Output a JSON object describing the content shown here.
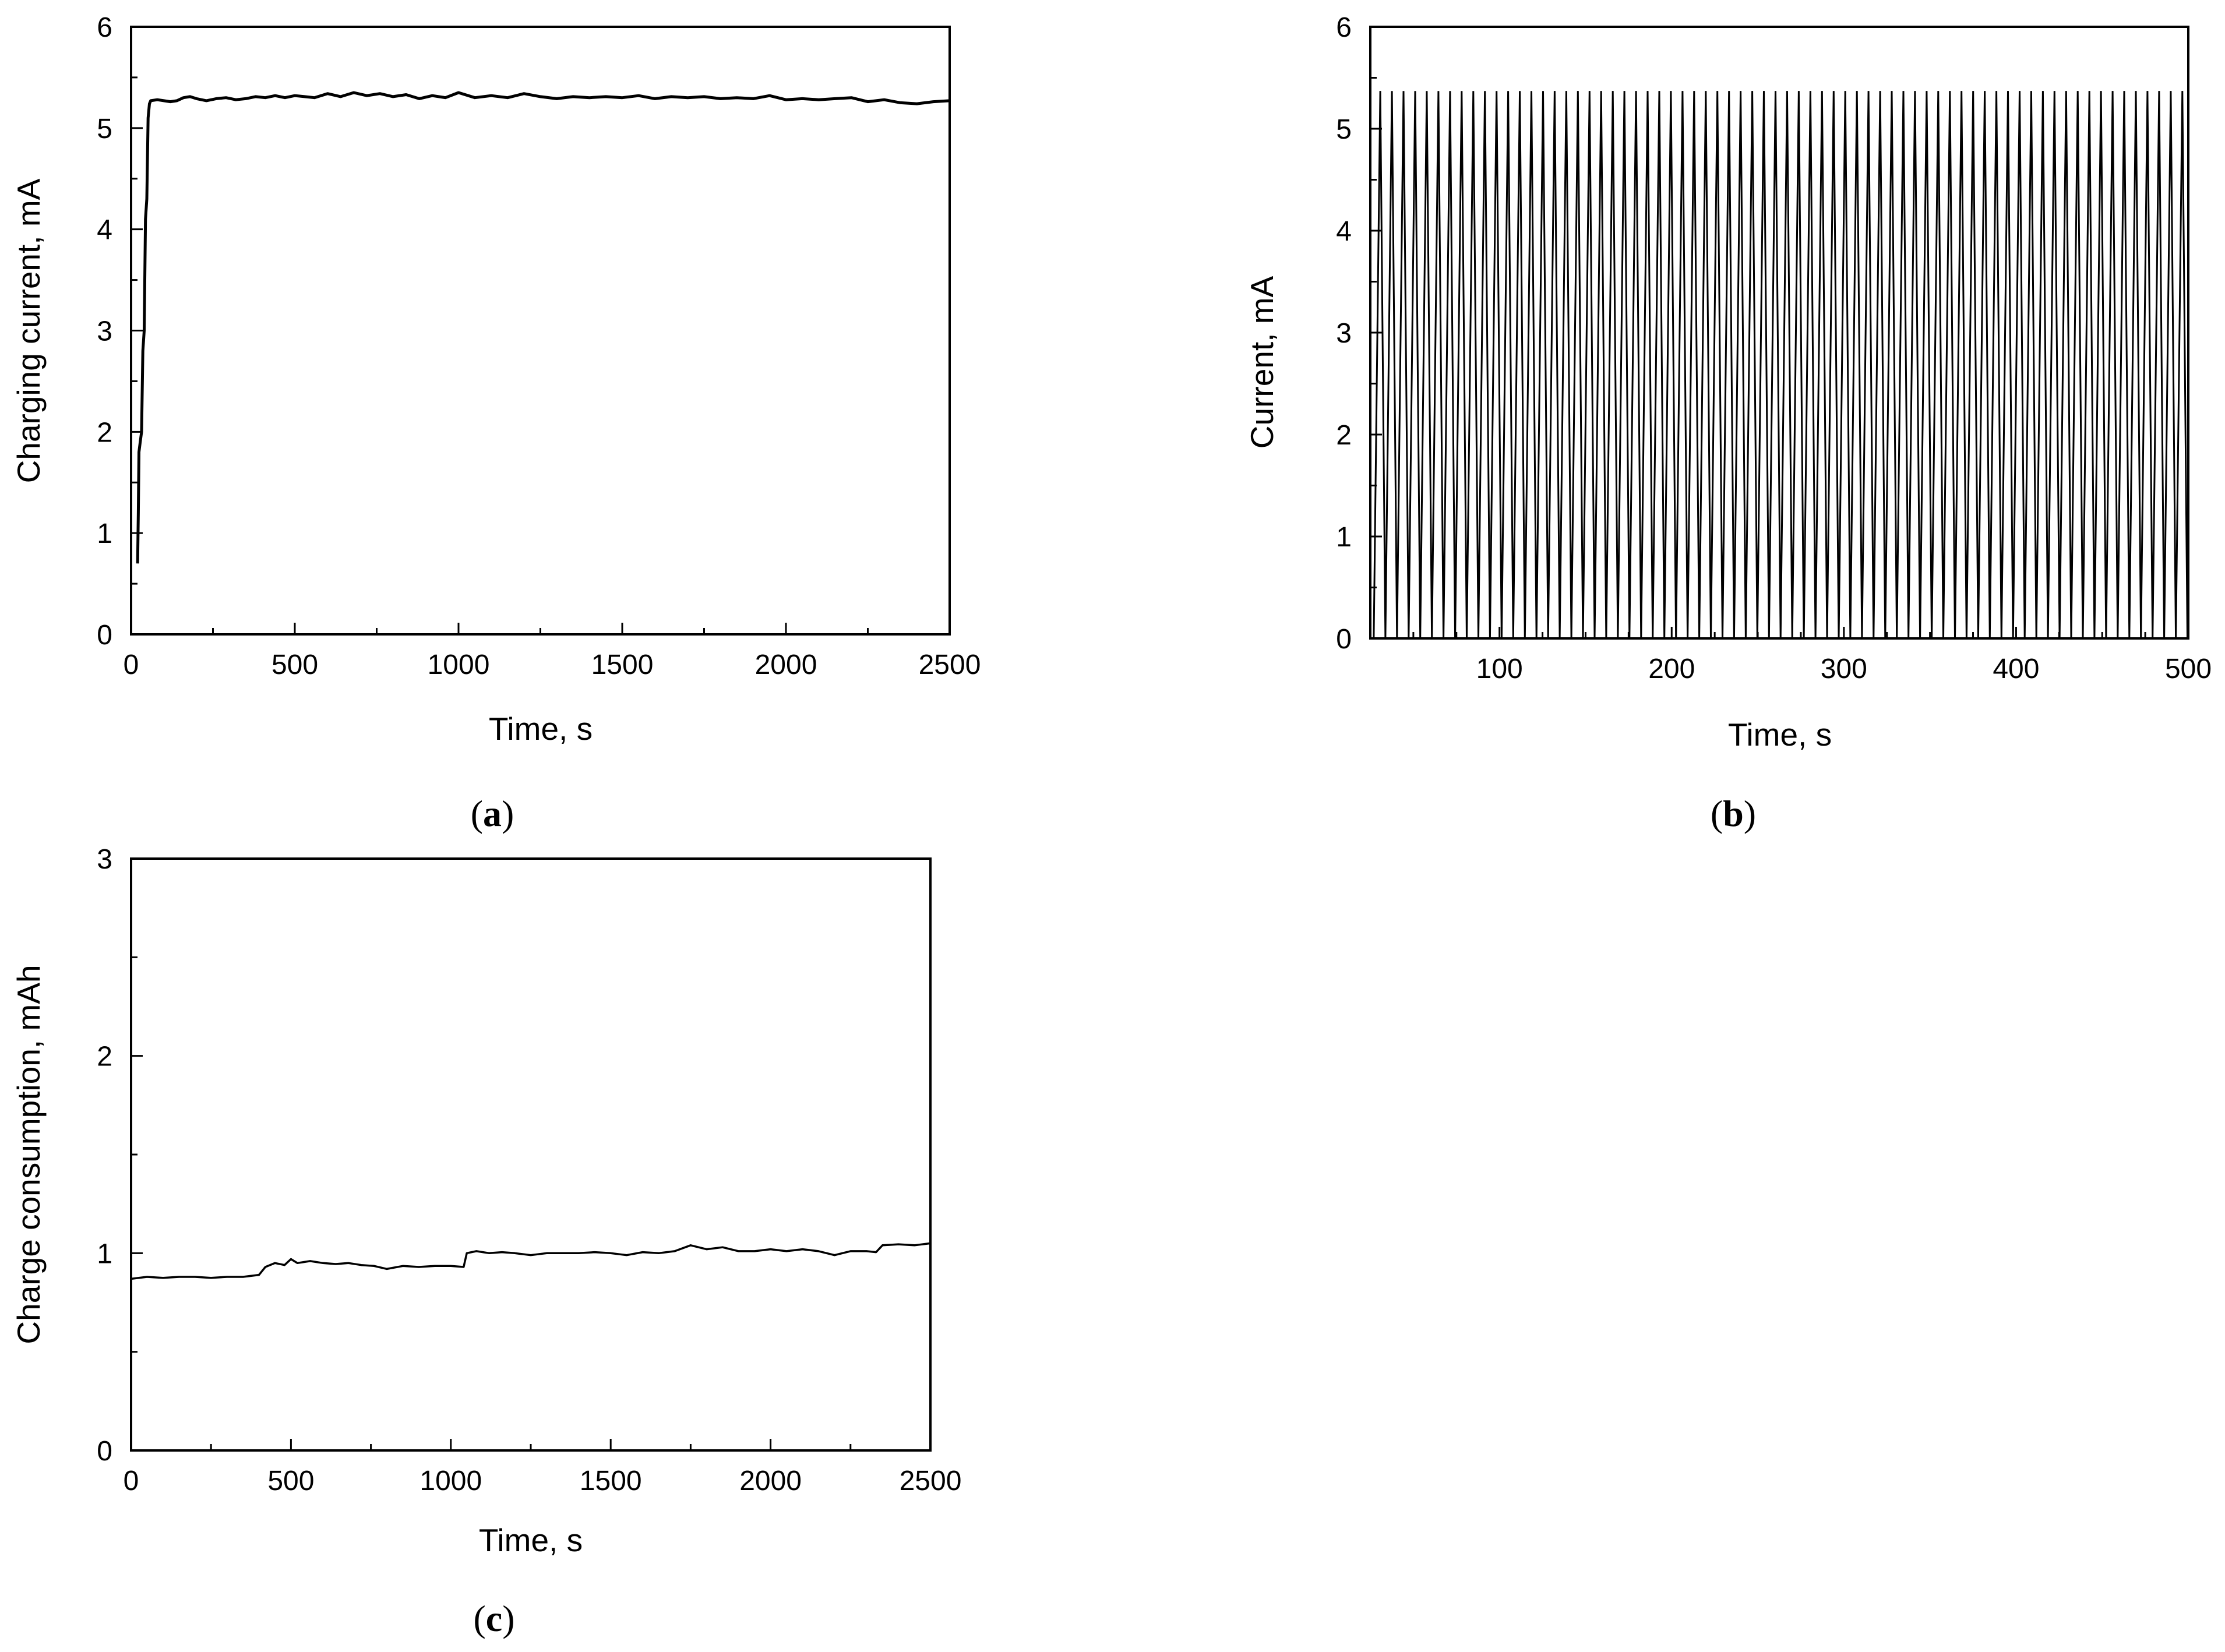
{
  "chart_data": [
    {
      "id": "a",
      "type": "line",
      "caption": {
        "open": "(",
        "letter": "a",
        "close": ")"
      },
      "xlabel": "Time, s",
      "ylabel": "Charging current, mA",
      "xlim": [
        0,
        2500
      ],
      "ylim": [
        0,
        6
      ],
      "xticks": [
        0,
        500,
        1000,
        1500,
        2000,
        2500
      ],
      "yticks": [
        0,
        1,
        2,
        3,
        4,
        5,
        6
      ],
      "xtick_labels": [
        "0",
        "500",
        "1000",
        "1500",
        "2000",
        "2500"
      ],
      "ytick_labels": [
        "0",
        "1",
        "2",
        "3",
        "4",
        "5",
        "6"
      ],
      "xminor": 250,
      "yminor": 0.5,
      "grid": false,
      "color": "#000000",
      "series": [
        {
          "x": [
            20,
            22,
            24,
            28,
            32,
            36,
            40,
            44,
            48,
            52,
            56,
            60,
            80,
            100,
            120,
            140,
            160,
            180,
            200,
            230,
            260,
            290,
            320,
            350,
            380,
            410,
            440,
            470,
            500,
            530,
            560,
            600,
            640,
            680,
            720,
            760,
            800,
            840,
            880,
            920,
            960,
            1000,
            1050,
            1100,
            1150,
            1200,
            1250,
            1300,
            1350,
            1400,
            1450,
            1500,
            1550,
            1600,
            1650,
            1700,
            1750,
            1800,
            1850,
            1900,
            1950,
            2000,
            2050,
            2100,
            2150,
            2200,
            2250,
            2300,
            2350,
            2400,
            2450,
            2500
          ],
          "y": [
            0.7,
            1.2,
            1.8,
            1.9,
            2.0,
            2.8,
            3.0,
            4.1,
            4.3,
            5.1,
            5.24,
            5.27,
            5.28,
            5.27,
            5.26,
            5.27,
            5.3,
            5.31,
            5.29,
            5.27,
            5.29,
            5.3,
            5.28,
            5.29,
            5.31,
            5.3,
            5.32,
            5.3,
            5.32,
            5.31,
            5.3,
            5.34,
            5.31,
            5.35,
            5.32,
            5.34,
            5.31,
            5.33,
            5.29,
            5.32,
            5.3,
            5.35,
            5.3,
            5.32,
            5.3,
            5.34,
            5.31,
            5.29,
            5.31,
            5.3,
            5.31,
            5.3,
            5.32,
            5.29,
            5.31,
            5.3,
            5.31,
            5.29,
            5.3,
            5.29,
            5.32,
            5.28,
            5.29,
            5.28,
            5.29,
            5.3,
            5.26,
            5.28,
            5.25,
            5.24,
            5.26,
            5.27
          ]
        }
      ]
    },
    {
      "id": "b",
      "type": "line",
      "caption": {
        "open": "(",
        "letter": "b",
        "close": ")"
      },
      "xlabel": "Time, s",
      "ylabel": "Current, mA",
      "xlim": [
        25,
        500
      ],
      "ylim": [
        0,
        6
      ],
      "xticks": [
        100,
        200,
        300,
        400,
        500
      ],
      "yticks": [
        0,
        1,
        2,
        3,
        4,
        5,
        6
      ],
      "xtick_labels": [
        "100",
        "200",
        "300",
        "400",
        "500"
      ],
      "ytick_labels": [
        "0",
        "1",
        "2",
        "3",
        "4",
        "5",
        "6"
      ],
      "xminor": 25,
      "yminor": 0.5,
      "grid": false,
      "color": "#000000",
      "pulses": {
        "start": 27,
        "period": 6.75,
        "rise": 3.8,
        "count": 70,
        "peak": 5.37,
        "base": 0.0
      }
    },
    {
      "id": "c",
      "type": "line",
      "caption": {
        "open": "(",
        "letter": "c",
        "close": ")"
      },
      "xlabel": "Time, s",
      "ylabel": "Charge consumption, mAh",
      "xlim": [
        0,
        2500
      ],
      "ylim": [
        0,
        3
      ],
      "xticks": [
        0,
        500,
        1000,
        1500,
        2000,
        2500
      ],
      "yticks": [
        0,
        1,
        2,
        3
      ],
      "xtick_labels": [
        "0",
        "500",
        "1000",
        "1500",
        "2000",
        "2500"
      ],
      "ytick_labels": [
        "0",
        "1",
        "2",
        "3"
      ],
      "xminor": 250,
      "yminor": 0.5,
      "grid": false,
      "color": "#000000",
      "series": [
        {
          "x": [
            0,
            50,
            100,
            150,
            200,
            250,
            300,
            350,
            400,
            420,
            450,
            480,
            500,
            520,
            560,
            600,
            640,
            680,
            720,
            760,
            800,
            850,
            900,
            950,
            1000,
            1040,
            1050,
            1080,
            1120,
            1160,
            1200,
            1250,
            1300,
            1350,
            1400,
            1450,
            1500,
            1550,
            1600,
            1650,
            1700,
            1750,
            1800,
            1850,
            1900,
            1950,
            2000,
            2050,
            2100,
            2150,
            2200,
            2250,
            2300,
            2330,
            2350,
            2400,
            2450,
            2500
          ],
          "y": [
            0.87,
            0.88,
            0.875,
            0.88,
            0.88,
            0.875,
            0.88,
            0.88,
            0.89,
            0.93,
            0.95,
            0.94,
            0.97,
            0.95,
            0.96,
            0.95,
            0.945,
            0.95,
            0.94,
            0.935,
            0.92,
            0.935,
            0.93,
            0.935,
            0.935,
            0.93,
            1.0,
            1.01,
            1.0,
            1.005,
            1.0,
            0.99,
            1.0,
            1.0,
            1.0,
            1.005,
            1.0,
            0.99,
            1.005,
            1.0,
            1.01,
            1.04,
            1.02,
            1.03,
            1.01,
            1.01,
            1.02,
            1.01,
            1.02,
            1.01,
            0.99,
            1.01,
            1.01,
            1.005,
            1.04,
            1.045,
            1.04,
            1.05
          ]
        }
      ]
    }
  ]
}
